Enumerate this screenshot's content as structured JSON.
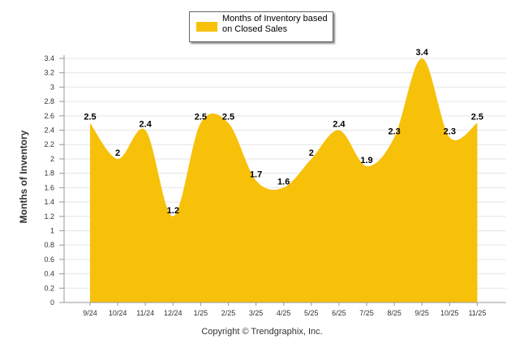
{
  "legend": {
    "label": "Months of Inventory based on Closed Sales"
  },
  "footer": {
    "copyright": "Copyright © Trendgraphix, Inc."
  },
  "colors": {
    "area": "#F7C10A",
    "grid": "#E6E6E6",
    "axis": "#999999"
  },
  "chart_data": {
    "type": "area",
    "title": "",
    "xlabel": "",
    "ylabel": "Months of Inventory",
    "categories": [
      "9/24",
      "10/24",
      "11/24",
      "12/24",
      "1/25",
      "2/25",
      "3/25",
      "4/25",
      "5/25",
      "6/25",
      "7/25",
      "8/25",
      "9/25",
      "10/25",
      "11/25"
    ],
    "series": [
      {
        "name": "Months of Inventory based on Closed Sales",
        "values": [
          2.5,
          2,
          2.4,
          1.2,
          2.5,
          2.5,
          1.7,
          1.6,
          2,
          2.4,
          1.9,
          2.3,
          3.4,
          2.3,
          2.5
        ]
      }
    ],
    "data_labels": [
      "2.5",
      "2",
      "2.4",
      "1.2",
      "2.5",
      "2.5",
      "1.7",
      "1.6",
      "2",
      "2.4",
      "1.9",
      "2.3",
      "3.4",
      "2.3",
      "2.5"
    ],
    "ylim": [
      0,
      3.4
    ],
    "yticks": [
      "0",
      "0.2",
      "0.4",
      "0.6",
      "0.8",
      "1",
      "1.2",
      "1.4",
      "1.6",
      "1.8",
      "2",
      "2.2",
      "2.4",
      "2.6",
      "2.8",
      "3",
      "3.2",
      "3.4"
    ],
    "grid": true,
    "legend_position": "top-center"
  }
}
